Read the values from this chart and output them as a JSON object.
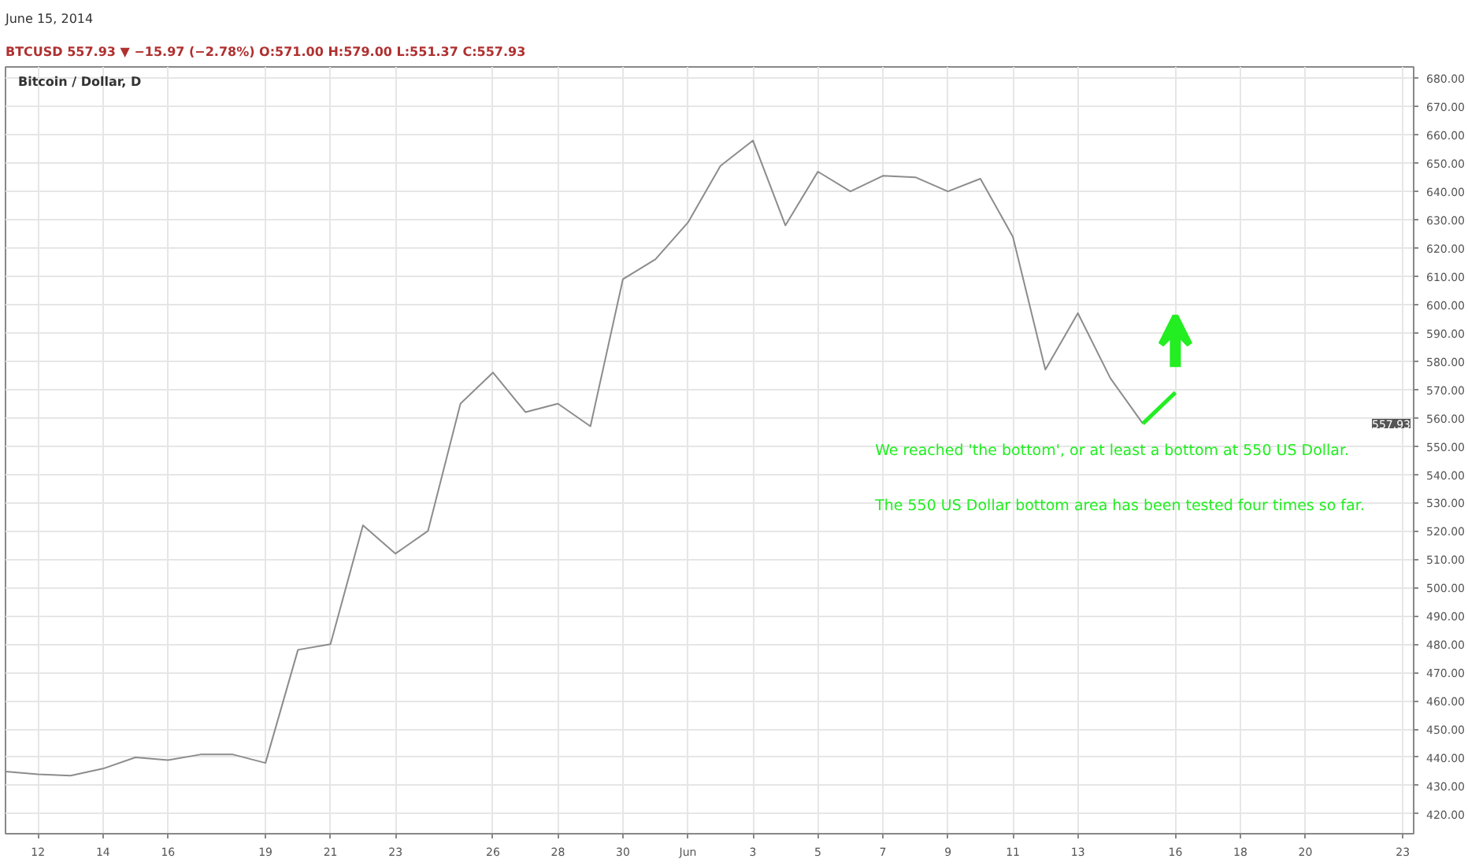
{
  "chart_data": {
    "type": "line",
    "title": "Bitcoin / Dollar, D",
    "subtitle": "June 15, 2014",
    "x": [
      "2014-05-11",
      "2014-05-12",
      "2014-05-13",
      "2014-05-14",
      "2014-05-15",
      "2014-05-16",
      "2014-05-17",
      "2014-05-18",
      "2014-05-19",
      "2014-05-20",
      "2014-05-21",
      "2014-05-22",
      "2014-05-23",
      "2014-05-24",
      "2014-05-25",
      "2014-05-26",
      "2014-05-27",
      "2014-05-28",
      "2014-05-29",
      "2014-05-30",
      "2014-05-31",
      "2014-06-01",
      "2014-06-02",
      "2014-06-03",
      "2014-06-04",
      "2014-06-05",
      "2014-06-06",
      "2014-06-07",
      "2014-06-08",
      "2014-06-09",
      "2014-06-10",
      "2014-06-11",
      "2014-06-12",
      "2014-06-13",
      "2014-06-14",
      "2014-06-15"
    ],
    "series": [
      {
        "color": "#8c8c8c",
        "values": [
          435,
          434,
          433.5,
          436,
          440,
          439,
          441,
          441,
          438,
          478,
          480,
          522,
          512,
          520,
          565,
          576,
          562,
          565,
          557,
          609,
          616,
          629,
          649,
          658,
          628,
          647,
          640,
          645.5,
          645,
          640,
          644.5,
          624,
          577,
          597,
          574,
          557.93
        ]
      }
    ],
    "xlim": [
      "2014-05-11",
      "2014-06-23T08:00"
    ],
    "xticks": [
      {
        "value": "2014-05-12",
        "label": "12"
      },
      {
        "value": "2014-05-14",
        "label": "14"
      },
      {
        "value": "2014-05-16",
        "label": "16"
      },
      {
        "value": "2014-05-19",
        "label": "19"
      },
      {
        "value": "2014-05-21",
        "label": "21"
      },
      {
        "value": "2014-05-23",
        "label": "23"
      },
      {
        "value": "2014-05-26",
        "label": "26"
      },
      {
        "value": "2014-05-28",
        "label": "28"
      },
      {
        "value": "2014-05-30",
        "label": "30"
      },
      {
        "value": "2014-06-01",
        "label": "Jun"
      },
      {
        "value": "2014-06-03",
        "label": "3"
      },
      {
        "value": "2014-06-05",
        "label": "5"
      },
      {
        "value": "2014-06-07",
        "label": "7"
      },
      {
        "value": "2014-06-09",
        "label": "9"
      },
      {
        "value": "2014-06-11",
        "label": "11"
      },
      {
        "value": "2014-06-13",
        "label": "13"
      },
      {
        "value": "2014-06-16",
        "label": "16"
      },
      {
        "value": "2014-06-18",
        "label": "18"
      },
      {
        "value": "2014-06-20",
        "label": "20"
      },
      {
        "value": "2014-06-23",
        "label": "23"
      }
    ],
    "ylim": [
      413,
      684
    ],
    "yticks": [
      {
        "value": 420,
        "label": "420.00"
      },
      {
        "value": 430,
        "label": "430.00"
      },
      {
        "value": 440,
        "label": "440.00"
      },
      {
        "value": 450,
        "label": "450.00"
      },
      {
        "value": 460,
        "label": "460.00"
      },
      {
        "value": 470,
        "label": "470.00"
      },
      {
        "value": 480,
        "label": "480.00"
      },
      {
        "value": 490,
        "label": "490.00"
      },
      {
        "value": 500,
        "label": "500.00"
      },
      {
        "value": 510,
        "label": "510.00"
      },
      {
        "value": 520,
        "label": "520.00"
      },
      {
        "value": 530,
        "label": "530.00"
      },
      {
        "value": 540,
        "label": "540.00"
      },
      {
        "value": 550,
        "label": "550.00"
      },
      {
        "value": 560,
        "label": "560.00"
      },
      {
        "value": 570,
        "label": "570.00"
      },
      {
        "value": 580,
        "label": "580.00"
      },
      {
        "value": 590,
        "label": "590.00"
      },
      {
        "value": 600,
        "label": "600.00"
      },
      {
        "value": 610,
        "label": "610.00"
      },
      {
        "value": 620,
        "label": "620.00"
      },
      {
        "value": 630,
        "label": "630.00"
      },
      {
        "value": 640,
        "label": "640.00"
      },
      {
        "value": 650,
        "label": "650.00"
      },
      {
        "value": 660,
        "label": "660.00"
      },
      {
        "value": 670,
        "label": "670.00"
      },
      {
        "value": 680,
        "label": "680.00"
      }
    ],
    "grid": true,
    "annotations": [
      "BTCUSD 557.93 ▼ −15.97 (−2.78%) O:571.00 H:579.00 L:551.37 C:557.93",
      "We reached 'the bottom', or at least a bottom at 550 US Dollar.",
      "The 550 US Dollar bottom area has been tested four times so far.",
      "557.93"
    ]
  }
}
